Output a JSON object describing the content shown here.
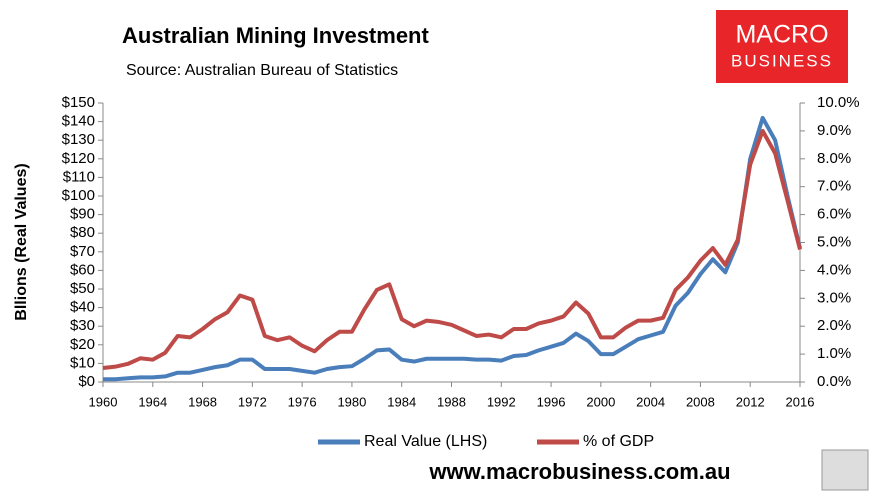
{
  "chart_data": {
    "type": "line",
    "title": "Australian Mining Investment",
    "subtitle": "Source: Australian Bureau of Statistics",
    "ylabel": "Bllions (Real Values)",
    "logo": {
      "line1": "MACRO",
      "line2": "BUSINESS"
    },
    "footer": "www.macrobusiness.com.au",
    "x": [
      1960,
      1961,
      1962,
      1963,
      1964,
      1965,
      1966,
      1967,
      1968,
      1969,
      1970,
      1971,
      1972,
      1973,
      1974,
      1975,
      1976,
      1977,
      1978,
      1979,
      1980,
      1981,
      1982,
      1983,
      1984,
      1985,
      1986,
      1987,
      1988,
      1989,
      1990,
      1991,
      1992,
      1993,
      1994,
      1995,
      1996,
      1997,
      1998,
      1999,
      2000,
      2001,
      2002,
      2003,
      2004,
      2005,
      2006,
      2007,
      2008,
      2009,
      2010,
      2011,
      2012,
      2013,
      2014,
      2015,
      2016
    ],
    "series": [
      {
        "name": "Real Value (LHS)",
        "color": "#4a7ebb",
        "axis": "y",
        "values": [
          1.5,
          1.5,
          2,
          2.5,
          2.5,
          3,
          5,
          5,
          6.5,
          8,
          9,
          12,
          12,
          7,
          7,
          7,
          6,
          5,
          7,
          8,
          8.5,
          12.5,
          17,
          17.5,
          12,
          11,
          12.5,
          12.5,
          12.5,
          12.5,
          12,
          12,
          11.5,
          14,
          14.5,
          17,
          19,
          21,
          26,
          22,
          15,
          15,
          19,
          23,
          25,
          27,
          41,
          48,
          58,
          66,
          59,
          75,
          120,
          142,
          130,
          100,
          72
        ]
      },
      {
        "name": "% of GDP",
        "color": "#be4b48",
        "axis": "y2",
        "values": [
          0.5,
          0.55,
          0.65,
          0.85,
          0.8,
          1.05,
          1.65,
          1.6,
          1.9,
          2.25,
          2.5,
          3.1,
          2.95,
          1.65,
          1.5,
          1.6,
          1.3,
          1.1,
          1.5,
          1.8,
          1.8,
          2.6,
          3.3,
          3.5,
          2.25,
          2.0,
          2.2,
          2.15,
          2.05,
          1.85,
          1.65,
          1.7,
          1.6,
          1.9,
          1.9,
          2.1,
          2.2,
          2.35,
          2.85,
          2.45,
          1.6,
          1.6,
          1.95,
          2.2,
          2.2,
          2.3,
          3.3,
          3.75,
          4.35,
          4.8,
          4.2,
          5.1,
          7.8,
          9.0,
          8.2,
          6.5,
          4.75
        ]
      }
    ],
    "xlim": [
      1960,
      2016
    ],
    "xticks": [
      1960,
      1964,
      1968,
      1972,
      1976,
      1980,
      1984,
      1988,
      1992,
      1996,
      2000,
      2004,
      2008,
      2012,
      2016
    ],
    "ylim": [
      0,
      150
    ],
    "yticks": [
      {
        "value": 0,
        "label": "$0"
      },
      {
        "value": 10,
        "label": "$10"
      },
      {
        "value": 20,
        "label": "$20"
      },
      {
        "value": 30,
        "label": "$30"
      },
      {
        "value": 40,
        "label": "$40"
      },
      {
        "value": 50,
        "label": "$50"
      },
      {
        "value": 60,
        "label": "$60"
      },
      {
        "value": 70,
        "label": "$70"
      },
      {
        "value": 80,
        "label": "$80"
      },
      {
        "value": 90,
        "label": "$90"
      },
      {
        "value": 100,
        "label": "$100"
      },
      {
        "value": 110,
        "label": "$110"
      },
      {
        "value": 120,
        "label": "$120"
      },
      {
        "value": 130,
        "label": "$130"
      },
      {
        "value": 140,
        "label": "$140"
      },
      {
        "value": 150,
        "label": "$150"
      }
    ],
    "y2lim": [
      0,
      10
    ],
    "y2ticks": [
      {
        "value": 0,
        "label": "0.0%"
      },
      {
        "value": 1,
        "label": "1.0%"
      },
      {
        "value": 2,
        "label": "2.0%"
      },
      {
        "value": 3,
        "label": "3.0%"
      },
      {
        "value": 4,
        "label": "4.0%"
      },
      {
        "value": 5,
        "label": "5.0%"
      },
      {
        "value": 6,
        "label": "6.0%"
      },
      {
        "value": 7,
        "label": "7.0%"
      },
      {
        "value": 8,
        "label": "8.0%"
      },
      {
        "value": 9,
        "label": "9.0%"
      },
      {
        "value": 10,
        "label": "10.0%"
      }
    ],
    "grid": false,
    "legend": "bottom"
  }
}
